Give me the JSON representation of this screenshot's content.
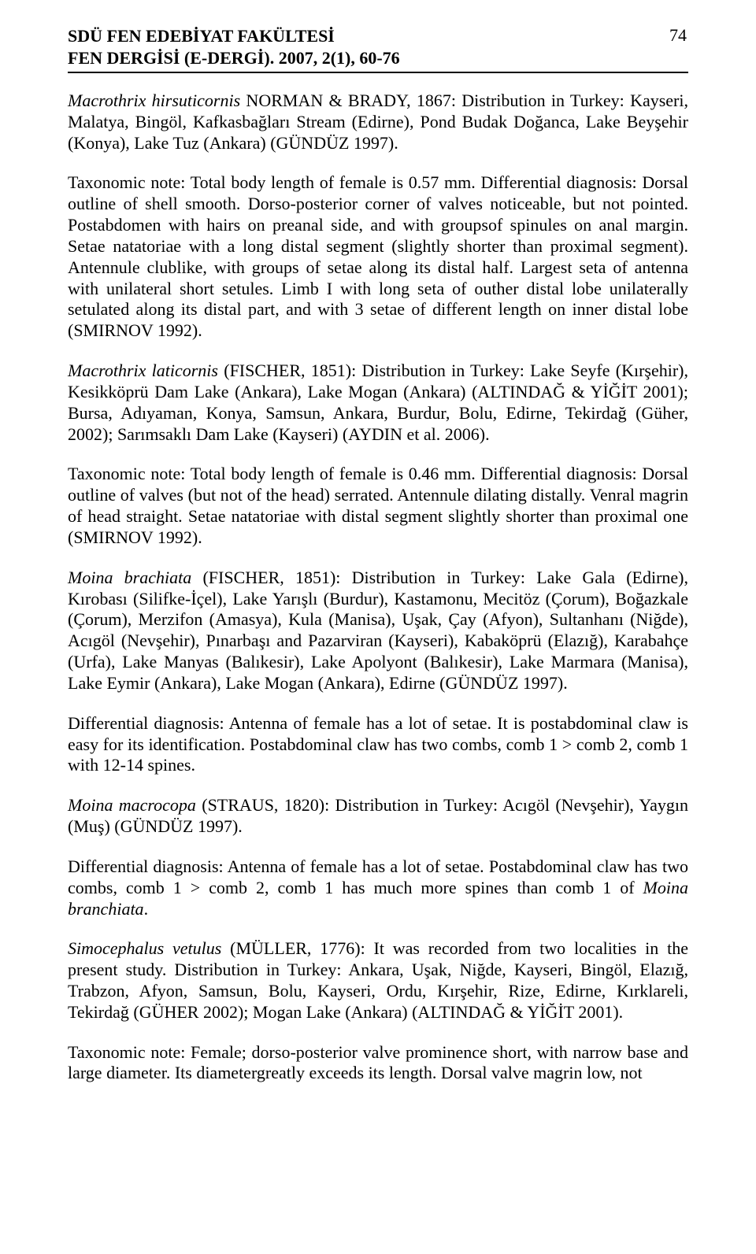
{
  "page_number": "74",
  "header": {
    "line1": "SDÜ FEN EDEBİYAT FAKÜLTESİ",
    "line2": "FEN DERGİSİ (E-DERGİ). 2007, 2(1), 60-76"
  },
  "paragraphs": {
    "p1": {
      "species": "Macrothrix hirsuticornis",
      "rest": " NORMAN & BRADY, 1867: Distribution in Turkey: Kayseri, Malatya, Bingöl, Kafkasbağları Stream (Edirne), Pond Budak Doğanca, Lake Beyşehir (Konya), Lake Tuz (Ankara) (GÜNDÜZ 1997)."
    },
    "p2": "Taxonomic note: Total body length of female is 0.57 mm. Differential diagnosis: Dorsal outline of shell smooth. Dorso-posterior corner of valves noticeable, but not pointed. Postabdomen with hairs on preanal side, and with groupsof spinules on anal margin. Setae natatoriae with a long distal segment (slightly shorter than proximal segment). Antennule clublike, with groups of setae along its distal half. Largest seta of antenna with unilateral short setules. Limb I with long seta of outher distal lobe unilaterally setulated along its distal part, and with 3 setae of different length on inner distal lobe (SMIRNOV 1992).",
    "p3": {
      "species": "Macrothrix laticornis",
      "rest": " (FISCHER, 1851): Distribution in Turkey: Lake Seyfe (Kırşehir), Kesikköprü Dam Lake (Ankara), Lake Mogan (Ankara) (ALTINDAĞ & YİĞİT 2001); Bursa, Adıyaman, Konya, Samsun, Ankara, Burdur, Bolu, Edirne, Tekirdağ (Güher, 2002); Sarımsaklı Dam Lake (Kayseri) (AYDIN et al. 2006)."
    },
    "p4": "Taxonomic note: Total body length of female is 0.46 mm. Differential diagnosis: Dorsal outline of valves (but not of the head) serrated. Antennule dilating distally. Venral magrin of head straight. Setae natatoriae with distal segment slightly shorter than proximal one (SMIRNOV 1992).",
    "p5": {
      "species": "Moina brachiata",
      "rest": " (FISCHER, 1851): Distribution in Turkey: Lake Gala (Edirne), Kırobası (Silifke-İçel), Lake Yarışlı (Burdur), Kastamonu, Mecitöz (Çorum), Boğazkale (Çorum), Merzifon (Amasya), Kula (Manisa), Uşak, Çay (Afyon), Sultanhanı (Niğde), Acıgöl (Nevşehir), Pınarbaşı and Pazarviran (Kayseri), Kabaköprü (Elazığ), Karabahçe (Urfa), Lake Manyas (Balıkesir), Lake Apolyont (Balıkesir), Lake Marmara (Manisa), Lake Eymir (Ankara), Lake Mogan (Ankara), Edirne (GÜNDÜZ 1997)."
    },
    "p6": "Differential diagnosis: Antenna of female has a lot of setae. It is postabdominal claw is easy for its identification. Postabdominal claw has two combs, comb 1 > comb 2, comb 1 with 12-14 spines.",
    "p7": {
      "species": "Moina macrocopa",
      "rest": " (STRAUS, 1820): Distribution in Turkey: Acıgöl (Nevşehir), Yaygın (Muş) (GÜNDÜZ 1997)."
    },
    "p8": {
      "pre": "Differential diagnosis: Antenna of female has a lot of setae. Postabdominal claw has two combs, comb 1 > comb 2, comb 1 has much more spines than comb 1 of ",
      "species": "Moina branchiata",
      "post": "."
    },
    "p9": {
      "species": "Simocephalus vetulus",
      "rest": " (MÜLLER, 1776): It was recorded from two localities in the present study. Distribution in Turkey: Ankara, Uşak, Niğde, Kayseri, Bingöl, Elazığ, Trabzon, Afyon, Samsun, Bolu, Kayseri, Ordu, Kırşehir, Rize, Edirne, Kırklareli, Tekirdağ (GÜHER 2002); Mogan Lake (Ankara) (ALTINDAĞ & YİĞİT 2001)."
    },
    "p10": "Taxonomic note: Female; dorso-posterior valve prominence short, with narrow base and large diameter. Its diametergreatly exceeds its length. Dorsal valve magrin low, not"
  }
}
